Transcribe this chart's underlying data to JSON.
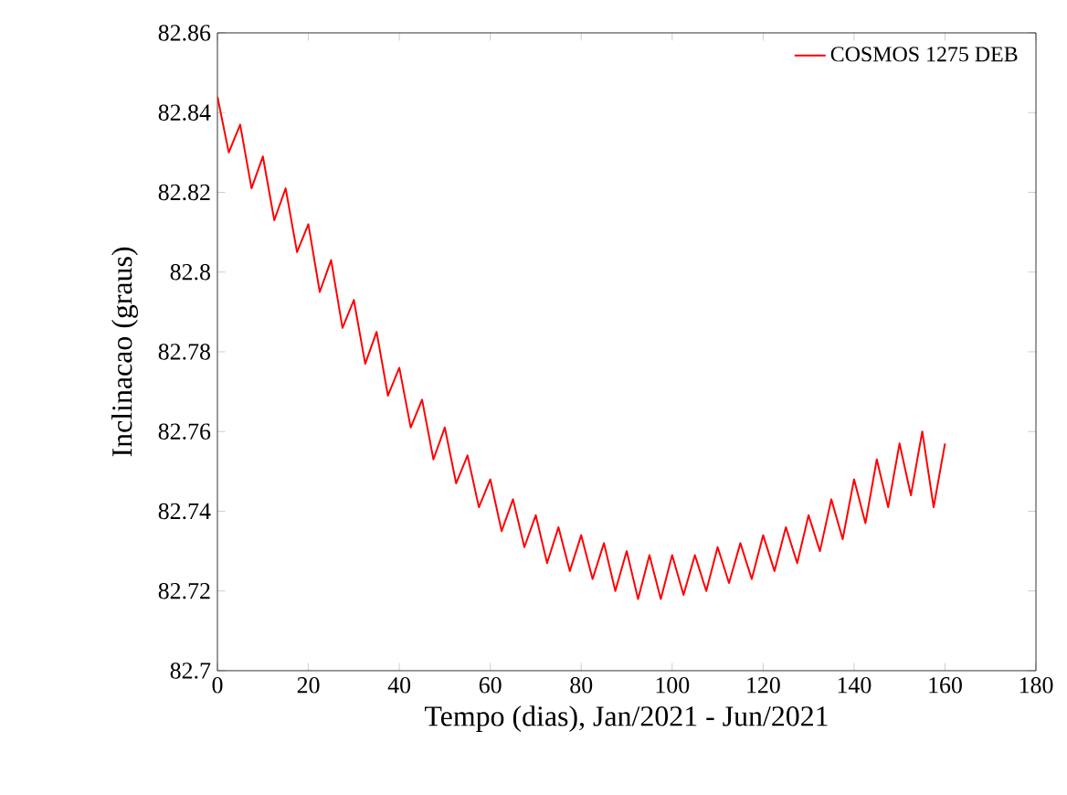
{
  "chart_data": {
    "type": "line",
    "xlabel": "Tempo (dias), Jan/2021 - Jun/2021",
    "ylabel": "Inclinacao (graus)",
    "x": [
      0,
      2.5,
      5,
      7.5,
      10,
      12.5,
      15,
      17.5,
      20,
      22.5,
      25,
      27.5,
      30,
      32.5,
      35,
      37.5,
      40,
      42.5,
      45,
      47.5,
      50,
      52.5,
      55,
      57.5,
      60,
      62.5,
      65,
      67.5,
      70,
      72.5,
      75,
      77.5,
      80,
      82.5,
      85,
      87.5,
      90,
      92.5,
      95,
      97.5,
      100,
      102.5,
      105,
      107.5,
      110,
      112.5,
      115,
      117.5,
      120,
      122.5,
      125,
      127.5,
      130,
      132.5,
      135,
      137.5,
      140,
      142.5,
      145,
      147.5,
      150,
      152.5,
      155,
      157.5,
      160
    ],
    "series": [
      {
        "name": "COSMOS 1275 DEB",
        "color": "#ff0000",
        "values": [
          82.844,
          82.83,
          82.837,
          82.821,
          82.829,
          82.813,
          82.821,
          82.805,
          82.812,
          82.795,
          82.803,
          82.786,
          82.793,
          82.777,
          82.785,
          82.769,
          82.776,
          82.761,
          82.768,
          82.753,
          82.761,
          82.747,
          82.754,
          82.741,
          82.748,
          82.735,
          82.743,
          82.731,
          82.739,
          82.727,
          82.736,
          82.725,
          82.734,
          82.723,
          82.732,
          82.72,
          82.73,
          82.718,
          82.729,
          82.718,
          82.729,
          82.719,
          82.729,
          82.72,
          82.731,
          82.722,
          82.732,
          82.723,
          82.734,
          82.725,
          82.736,
          82.727,
          82.739,
          82.73,
          82.743,
          82.733,
          82.748,
          82.737,
          82.753,
          82.741,
          82.757,
          82.744,
          82.76,
          82.741,
          82.757
        ]
      }
    ],
    "xlim": [
      0,
      180
    ],
    "xticks": [
      0,
      20,
      40,
      60,
      80,
      100,
      120,
      140,
      160,
      180
    ],
    "ylim": [
      82.7,
      82.86
    ],
    "yticks": [
      82.7,
      82.72,
      82.74,
      82.76,
      82.78,
      82.8,
      82.82,
      82.84,
      82.86
    ],
    "grid": false,
    "legend": "top right",
    "marker": "none",
    "line_style": "solid"
  }
}
